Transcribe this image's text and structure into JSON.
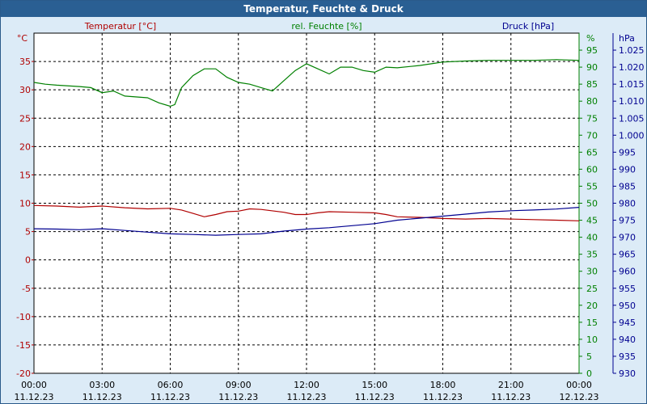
{
  "window": {
    "title": "Temperatur, Feuchte & Druck"
  },
  "colors": {
    "temperature": "#b00000",
    "humidity": "#008000",
    "pressure": "#000090",
    "background": "#dcebf7",
    "plot_bg": "#ffffff",
    "titlebar": "#2a5f93"
  },
  "chart_data": {
    "type": "line",
    "title": "Temperatur, Feuchte & Druck",
    "grid": true,
    "x_ticks": [
      {
        "time": "00:00",
        "date": "11.12.23"
      },
      {
        "time": "03:00",
        "date": "11.12.23"
      },
      {
        "time": "06:00",
        "date": "11.12.23"
      },
      {
        "time": "09:00",
        "date": "11.12.23"
      },
      {
        "time": "12:00",
        "date": "11.12.23"
      },
      {
        "time": "15:00",
        "date": "11.12.23"
      },
      {
        "time": "18:00",
        "date": "11.12.23"
      },
      {
        "time": "21:00",
        "date": "11.12.23"
      },
      {
        "time": "00:00",
        "date": "12.12.23"
      }
    ],
    "x_range_hours": [
      0,
      24
    ],
    "axes": {
      "temperature": {
        "label": "Temperatur [°C]",
        "unit": "°C",
        "range": [
          -20,
          40
        ],
        "ticks": [
          -20,
          -15,
          -10,
          -5,
          0,
          5,
          10,
          15,
          20,
          25,
          30,
          35
        ]
      },
      "humidity": {
        "label": "rel. Feuchte [%]",
        "unit": "%",
        "range": [
          0,
          100
        ],
        "ticks": [
          0,
          5,
          10,
          15,
          20,
          25,
          30,
          35,
          40,
          45,
          50,
          55,
          60,
          65,
          70,
          75,
          80,
          85,
          90,
          95
        ]
      },
      "pressure": {
        "label": "Druck [hPa]",
        "unit": "hPa",
        "range": [
          930,
          1030
        ],
        "ticks": [
          "930",
          "935",
          "940",
          "945",
          "950",
          "955",
          "960",
          "965",
          "970",
          "975",
          "980",
          "985",
          "990",
          "995",
          "1.000",
          "1.005",
          "1.010",
          "1.015",
          "1.020",
          "1.025"
        ]
      }
    },
    "series": [
      {
        "name": "Temperatur [°C]",
        "axis": "temperature",
        "points": [
          [
            0,
            9.6
          ],
          [
            1,
            9.5
          ],
          [
            2,
            9.3
          ],
          [
            3,
            9.5
          ],
          [
            4,
            9.2
          ],
          [
            5,
            9.0
          ],
          [
            6,
            9.1
          ],
          [
            6.5,
            8.8
          ],
          [
            7,
            8.2
          ],
          [
            7.5,
            7.6
          ],
          [
            8,
            8.0
          ],
          [
            8.5,
            8.5
          ],
          [
            9,
            8.6
          ],
          [
            9.5,
            9.0
          ],
          [
            10,
            8.9
          ],
          [
            11,
            8.4
          ],
          [
            11.5,
            8.0
          ],
          [
            12,
            8.0
          ],
          [
            12.5,
            8.3
          ],
          [
            13,
            8.5
          ],
          [
            14,
            8.4
          ],
          [
            15,
            8.3
          ],
          [
            15.5,
            8.0
          ],
          [
            16,
            7.6
          ],
          [
            17,
            7.5
          ],
          [
            18,
            7.3
          ],
          [
            19,
            7.2
          ],
          [
            20,
            7.3
          ],
          [
            21,
            7.2
          ],
          [
            22,
            7.1
          ],
          [
            23,
            7.0
          ],
          [
            24,
            6.9
          ]
        ]
      },
      {
        "name": "rel. Feuchte [%]",
        "axis": "humidity",
        "points": [
          [
            0,
            85.5
          ],
          [
            0.5,
            85
          ],
          [
            1,
            84.7
          ],
          [
            2,
            84.3
          ],
          [
            2.5,
            84
          ],
          [
            3,
            82.5
          ],
          [
            3.5,
            83
          ],
          [
            4,
            81.5
          ],
          [
            5,
            81
          ],
          [
            5.5,
            79.5
          ],
          [
            6,
            78.5
          ],
          [
            6.2,
            79
          ],
          [
            6.5,
            84
          ],
          [
            7,
            87.5
          ],
          [
            7.5,
            89.5
          ],
          [
            8,
            89.5
          ],
          [
            8.5,
            87
          ],
          [
            9,
            85.5
          ],
          [
            9.5,
            85
          ],
          [
            10,
            84
          ],
          [
            10.5,
            83
          ],
          [
            11,
            86
          ],
          [
            11.5,
            89
          ],
          [
            12,
            91
          ],
          [
            12.5,
            89.5
          ],
          [
            13,
            88
          ],
          [
            13.5,
            90
          ],
          [
            14,
            90
          ],
          [
            14.5,
            89
          ],
          [
            15,
            88.5
          ],
          [
            15.5,
            90
          ],
          [
            16,
            89.8
          ],
          [
            17,
            90.5
          ],
          [
            17.5,
            91
          ],
          [
            18,
            91.5
          ],
          [
            19,
            91.8
          ],
          [
            20,
            92
          ],
          [
            21,
            92
          ],
          [
            22,
            92
          ],
          [
            23,
            92.2
          ],
          [
            24,
            92
          ]
        ]
      },
      {
        "name": "Druck [hPa]",
        "axis": "pressure",
        "points": [
          [
            0,
            972.5
          ],
          [
            1,
            972.4
          ],
          [
            2,
            972.2
          ],
          [
            3,
            972.5
          ],
          [
            4,
            972.0
          ],
          [
            5,
            971.5
          ],
          [
            6,
            971.0
          ],
          [
            7,
            970.8
          ],
          [
            8,
            970.6
          ],
          [
            9,
            970.8
          ],
          [
            10,
            971.0
          ],
          [
            11,
            971.8
          ],
          [
            12,
            972.4
          ],
          [
            13,
            972.8
          ],
          [
            14,
            973.4
          ],
          [
            15,
            974.0
          ],
          [
            16,
            975.0
          ],
          [
            17,
            975.6
          ],
          [
            18,
            976.2
          ],
          [
            19,
            976.8
          ],
          [
            20,
            977.4
          ],
          [
            21,
            977.8
          ],
          [
            22,
            978.0
          ],
          [
            23,
            978.3
          ],
          [
            24,
            978.8
          ]
        ]
      }
    ]
  }
}
